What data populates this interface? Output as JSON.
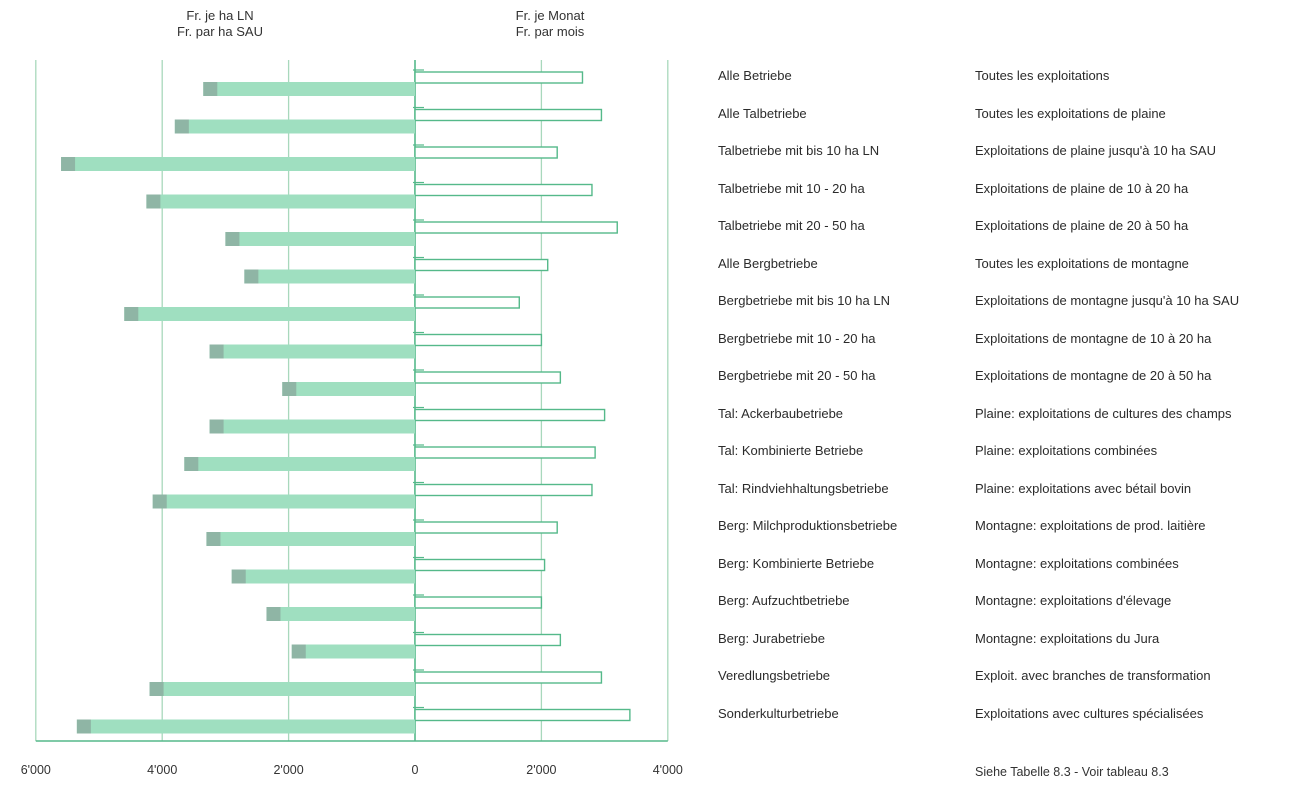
{
  "headers": {
    "left_line1": "Fr. je ha LN",
    "left_line2": "Fr. par ha SAU",
    "right_line1": "Fr. je Monat",
    "right_line2": "Fr. par mois"
  },
  "footnote": "Siehe Tabelle 8.3   -   Voir tableau 8.3",
  "colors": {
    "bar_fill": "#9fdfc0",
    "bar_dark": "#8fb5a5",
    "gridline": "#a8d8bc",
    "outline": "#55b98a"
  },
  "chart_data": {
    "type": "bar",
    "orientation": "horizontal",
    "layout": "butterfly",
    "left_panel": {
      "unit": "Fr. je ha LN / Fr. par ha SAU",
      "xlim": [
        6000,
        0
      ],
      "ticks": [
        "6'000",
        "4'000",
        "2'000",
        "0"
      ],
      "tick_values": [
        6000,
        4000,
        2000,
        0
      ]
    },
    "right_panel": {
      "unit": "Fr. je Monat / Fr. par mois",
      "xlim": [
        0,
        4000
      ],
      "ticks": [
        "2'000",
        "4'000"
      ],
      "tick_values": [
        2000,
        4000
      ]
    },
    "categories_de": [
      "Alle Betriebe",
      "Alle Talbetriebe",
      "Talbetriebe mit bis 10 ha LN",
      "Talbetriebe mit 10 - 20 ha",
      "Talbetriebe mit 20 - 50 ha",
      "Alle Bergbetriebe",
      "Bergbetriebe mit bis 10 ha LN",
      "Bergbetriebe mit 10 - 20 ha",
      "Bergbetriebe mit 20 - 50 ha",
      "Tal: Ackerbaubetriebe",
      "Tal: Kombinierte Betriebe",
      "Tal: Rindviehhaltungsbetriebe",
      "Berg: Milchproduktionsbetriebe",
      "Berg: Kombinierte Betriebe",
      "Berg: Aufzuchtbetriebe",
      "Berg: Jurabetriebe",
      "Veredlungsbetriebe",
      "Sonderkulturbetriebe"
    ],
    "categories_fr": [
      "Toutes les exploitations",
      "Toutes les exploitations de plaine",
      "Exploitations de plaine jusqu'à 10 ha SAU",
      "Exploitations de plaine de 10 à 20 ha",
      "Exploitations de plaine de 20 à 50 ha",
      "Toutes les exploitations de montagne",
      "Exploitations de montagne jusqu'à 10 ha SAU",
      "Exploitations de montagne de 10 à 20 ha",
      "Exploitations de montagne de 20 à 50 ha",
      "Plaine: exploitations de cultures des champs",
      "Plaine: exploitations combinées",
      "Plaine: exploitations avec bétail bovin",
      "Montagne: exploitations de prod. laitière",
      "Montagne: exploitations  combinées",
      "Montagne: exploitations d'élevage",
      "Montagne: exploitations du Jura",
      "Exploit. avec branches de transformation",
      "Exploitations avec cultures spécialisées"
    ],
    "series": [
      {
        "values": [
          3350,
          3800,
          5600,
          4250,
          3000,
          2700,
          4600,
          3250,
          2100,
          3250,
          3650,
          4150,
          3300,
          2900,
          2350,
          1950,
          4200,
          5350
        ]
      },
      {
        "values": [
          2650,
          2950,
          2250,
          2800,
          3200,
          2100,
          1650,
          2000,
          2300,
          3000,
          2850,
          2800,
          2250,
          2050,
          2000,
          2300,
          2950,
          3400
        ]
      }
    ]
  }
}
